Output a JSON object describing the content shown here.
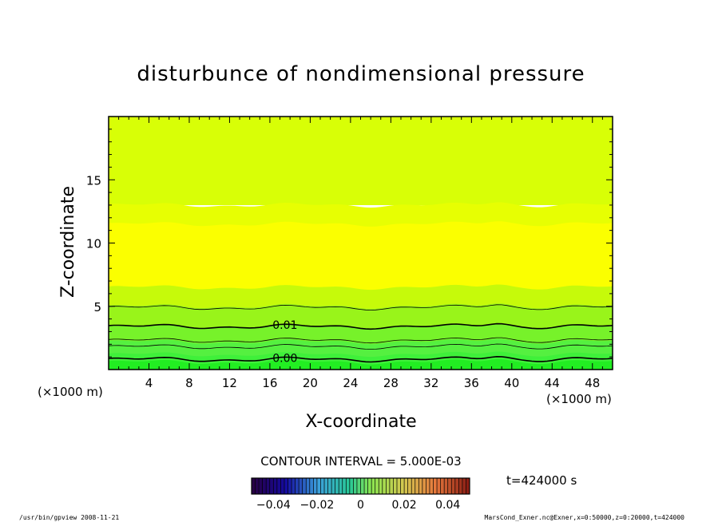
{
  "chart_data": {
    "type": "heatmap",
    "title": "disturbunce of nondimensional pressure",
    "xlabel": "X-coordinate",
    "ylabel": "Z-coordinate",
    "x_unit_left": "(×1000 m)",
    "x_unit_right": "(×1000 m)",
    "xlim": [
      0,
      50
    ],
    "ylim": [
      0,
      20
    ],
    "x_ticks": [
      4,
      8,
      12,
      16,
      20,
      24,
      28,
      32,
      36,
      40,
      44,
      48
    ],
    "x_tick_labels": [
      "4",
      "8",
      "12",
      "16",
      "20",
      "24",
      "28",
      "32",
      "36",
      "40",
      "44",
      "48"
    ],
    "y_ticks": [
      5,
      10,
      15
    ],
    "y_tick_labels": [
      "5",
      "10",
      "15"
    ],
    "contour_interval_label": "CONTOUR INTERVAL = 5.000E-03",
    "time_label": "t=424000 s",
    "colorbar": {
      "min": -0.05,
      "max": 0.05,
      "ticks": [
        -0.04,
        -0.02,
        0,
        0.02,
        0.04
      ],
      "tick_labels": [
        "−0.04",
        "−0.02",
        "0",
        "0.02",
        "0.04"
      ]
    },
    "bands": [
      {
        "z_top": 0.6,
        "color": "#22ee22"
      },
      {
        "z_top": 1.2,
        "color": "#3ff03a"
      },
      {
        "z_top": 2.2,
        "color": "#55f040"
      },
      {
        "z_top": 3.4,
        "color": "#77f22a"
      },
      {
        "z_top": 5.0,
        "color": "#99f41a"
      },
      {
        "z_top": 6.5,
        "color": "#c6fa0a"
      },
      {
        "z_top": 11.5,
        "color": "#fbff00"
      },
      {
        "z_top": 13.0,
        "color": "#e7ff02"
      },
      {
        "z_top": 20.0,
        "color": "#d8ff06"
      }
    ],
    "contours": [
      {
        "z": 0.8,
        "label": "0.00",
        "label_x": 17.5,
        "bold": true
      },
      {
        "z": 1.8,
        "label": "",
        "bold": false
      },
      {
        "z": 2.3,
        "label": "",
        "bold": false
      },
      {
        "z": 3.4,
        "label": "0.01",
        "label_x": 17.5,
        "bold": true
      },
      {
        "z": 4.9,
        "label": "",
        "bold": false
      }
    ],
    "footer_left": "/usr/bin/gpview   2008-11-21",
    "footer_right": "MarsCond_Exner.nc@Exner,x=0:50000,z=0:20000,t=424000"
  }
}
